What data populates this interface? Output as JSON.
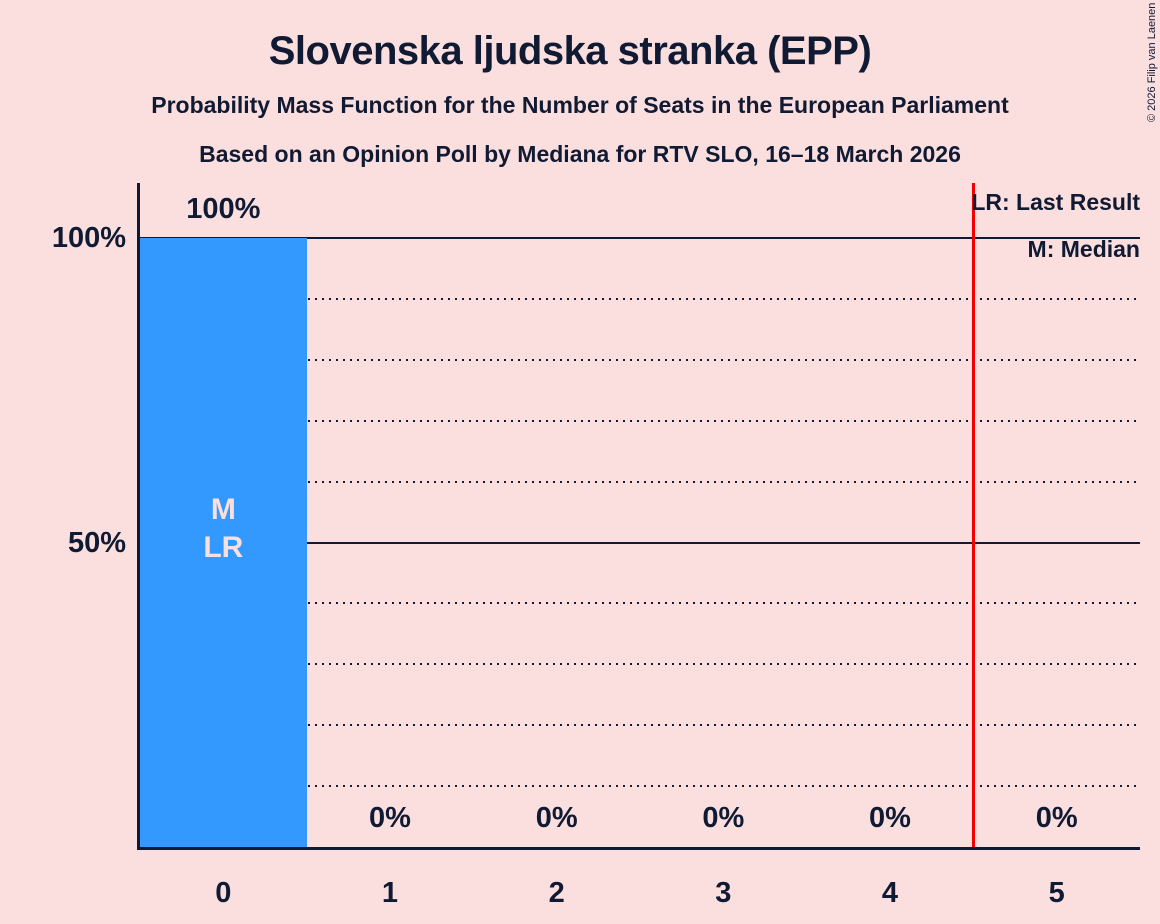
{
  "title": "Slovenska ljudska stranka (EPP)",
  "subtitle": "Probability Mass Function for the Number of Seats in the European Parliament",
  "poll_info": "Based on an Opinion Poll by Mediana for RTV SLO, 16–18 March 2026",
  "copyright": "© 2026 Filip van Laenen",
  "legend": {
    "last_result": "LR: Last Result",
    "median": "M: Median"
  },
  "colors": {
    "background": "#fbdfdf",
    "bar": "#3399ff",
    "text": "#101a33",
    "marker_line": "#f50000",
    "bar_annotation": "#fbdfdf"
  },
  "chart_data": {
    "type": "bar",
    "title": "Slovenska ljudska stranka (EPP)",
    "categories": [
      "0",
      "1",
      "2",
      "3",
      "4",
      "5"
    ],
    "values": [
      100,
      0,
      0,
      0,
      0,
      0
    ],
    "value_labels": [
      "100%",
      "0%",
      "0%",
      "0%",
      "0%",
      "0%"
    ],
    "y_ticks": [
      {
        "value": 100,
        "label": "100%"
      },
      {
        "value": 50,
        "label": "50%"
      }
    ],
    "gridlines": {
      "solid": [
        100,
        50
      ],
      "dotted": [
        90,
        80,
        70,
        60,
        40,
        30,
        20,
        10
      ]
    },
    "ylim": [
      0,
      109
    ],
    "grid": true,
    "legend_position": "top-right",
    "median_category": "0",
    "last_result_category": "0",
    "bar_annotations": {
      "0": [
        "M",
        "LR"
      ]
    },
    "marker_line_x": 4.5
  }
}
